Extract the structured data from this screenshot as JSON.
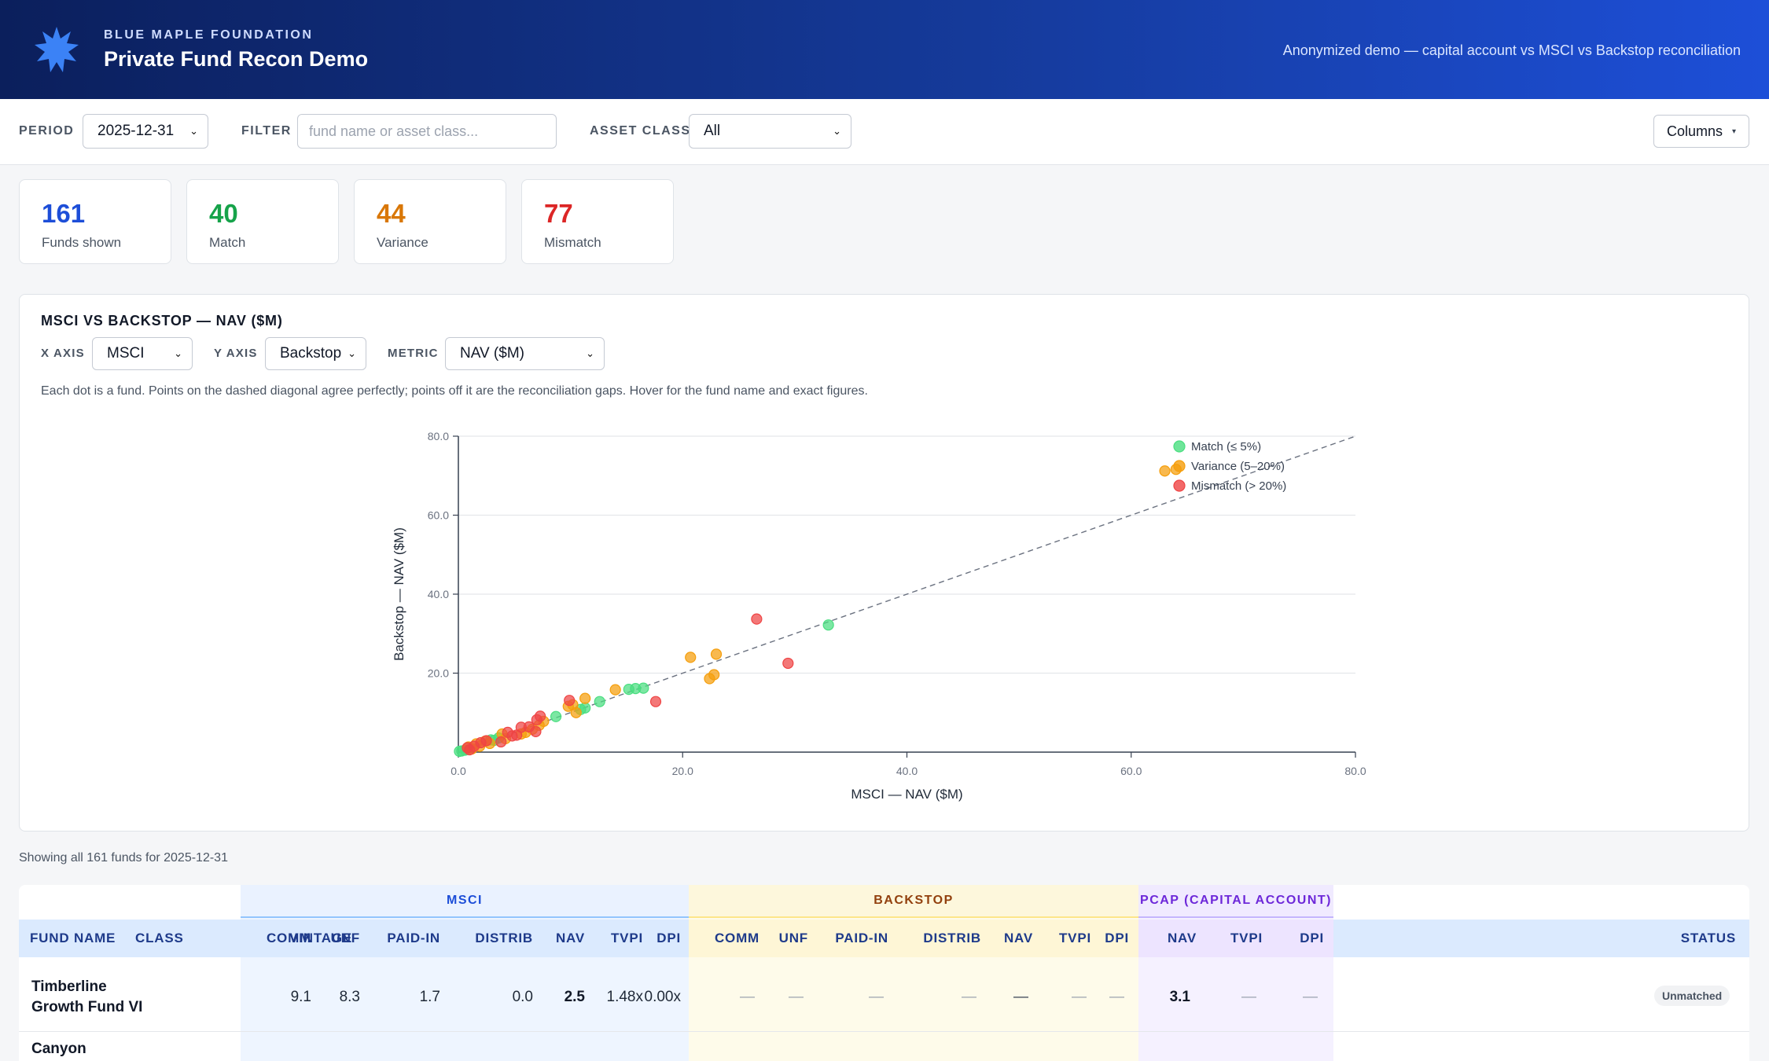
{
  "header": {
    "org": "BLUE MAPLE FOUNDATION",
    "title": "Private Fund Recon Demo",
    "subtitle": "Anonymized demo — capital account vs MSCI vs Backstop reconciliation"
  },
  "toolbar": {
    "period_label": "PERIOD",
    "period_value": "2025-12-31",
    "filter_label": "FILTER",
    "filter_placeholder": "fund name or asset class...",
    "asset_class_label": "ASSET CLASS",
    "asset_class_value": "All",
    "columns_label": "Columns"
  },
  "kpis": [
    {
      "value": "161",
      "label": "Funds shown",
      "color": "#1d4ed8"
    },
    {
      "value": "40",
      "label": "Match",
      "color": "#16a34a"
    },
    {
      "value": "44",
      "label": "Variance",
      "color": "#d97706"
    },
    {
      "value": "77",
      "label": "Mismatch",
      "color": "#dc2626"
    }
  ],
  "chart_panel": {
    "title": "MSCI VS BACKSTOP — NAV ($M)",
    "x_axis_label": "X AXIS",
    "x_axis_value": "MSCI",
    "y_axis_label": "Y AXIS",
    "y_axis_value": "Backstop",
    "metric_label": "METRIC",
    "metric_value": "NAV ($M)",
    "description": "Each dot is a fund. Points on the dashed diagonal agree perfectly; points off it are the reconciliation gaps. Hover for the fund name and exact figures."
  },
  "chart_data": {
    "type": "scatter",
    "xlabel": "MSCI — NAV ($M)",
    "ylabel": "Backstop — NAV ($M)",
    "xlim": [
      0,
      80
    ],
    "ylim": [
      0,
      80
    ],
    "xticks": [
      "0.0",
      "20.0",
      "40.0",
      "60.0",
      "80.0"
    ],
    "yticks": [
      "20.0",
      "40.0",
      "60.0",
      "80.0"
    ],
    "grid": "horizontal",
    "legend_position": "top-right",
    "diagonal": "dashed y = x",
    "colors": {
      "match": "#4ade80",
      "variance": "#f59e0b",
      "mismatch": "#ef4444"
    },
    "series": [
      {
        "name": "Match (≤ 5%)",
        "key": "match",
        "points": [
          [
            33.0,
            32.2
          ],
          [
            16.5,
            16.2
          ],
          [
            15.8,
            16.1
          ],
          [
            15.2,
            15.9
          ],
          [
            12.6,
            12.8
          ],
          [
            11.3,
            11.2
          ],
          [
            10.9,
            10.8
          ],
          [
            8.7,
            9.0
          ],
          [
            3.6,
            3.6
          ],
          [
            3.2,
            3.0
          ],
          [
            2.9,
            3.1
          ],
          [
            0.3,
            0.3
          ],
          [
            0.1,
            0.2
          ],
          [
            0.6,
            0.5
          ]
        ]
      },
      {
        "name": "Variance (5–20%)",
        "key": "variance",
        "points": [
          [
            63.0,
            71.2
          ],
          [
            64.0,
            71.6
          ],
          [
            20.7,
            24.0
          ],
          [
            23.0,
            24.8
          ],
          [
            22.8,
            19.6
          ],
          [
            22.4,
            18.6
          ],
          [
            14.0,
            15.8
          ],
          [
            11.3,
            13.6
          ],
          [
            10.2,
            12.0
          ],
          [
            10.5,
            10.0
          ],
          [
            9.8,
            11.6
          ],
          [
            7.6,
            7.8
          ],
          [
            7.2,
            6.8
          ],
          [
            6.6,
            5.8
          ],
          [
            6.0,
            5.0
          ],
          [
            5.6,
            4.6
          ],
          [
            4.2,
            3.4
          ],
          [
            3.9,
            4.6
          ],
          [
            2.8,
            2.2
          ],
          [
            2.4,
            2.8
          ],
          [
            1.9,
            1.5
          ],
          [
            1.6,
            2.1
          ],
          [
            1.2,
            0.8
          ],
          [
            0.9,
            1.3
          ]
        ]
      },
      {
        "name": "Mismatch (> 20%)",
        "key": "mismatch",
        "points": [
          [
            26.6,
            33.7
          ],
          [
            29.4,
            22.5
          ],
          [
            17.6,
            12.8
          ],
          [
            9.9,
            13.1
          ],
          [
            7.3,
            9.1
          ],
          [
            7.0,
            8.2
          ],
          [
            6.3,
            6.4
          ],
          [
            5.2,
            4.3
          ],
          [
            5.6,
            6.3
          ],
          [
            4.8,
            4.1
          ],
          [
            3.8,
            2.6
          ],
          [
            2.5,
            2.9
          ],
          [
            2.0,
            2.4
          ],
          [
            1.4,
            1.5
          ],
          [
            1.0,
            0.6
          ],
          [
            0.8,
            1.1
          ],
          [
            6.9,
            5.2
          ],
          [
            4.4,
            5.0
          ]
        ]
      }
    ]
  },
  "table": {
    "showing_text": "Showing all 161 funds for 2025-12-31",
    "groups": [
      "MSCI",
      "BACKSTOP",
      "PCAP (CAPITAL ACCOUNT)"
    ],
    "columns": [
      "FUND NAME",
      "CLASS",
      "VINTAGE",
      "COMM",
      "UNF",
      "PAID-IN",
      "DISTRIB",
      "NAV",
      "TVPI",
      "DPI",
      "COMM",
      "UNF",
      "PAID-IN",
      "DISTRIB",
      "NAV",
      "TVPI",
      "DPI",
      "NAV",
      "TVPI",
      "DPI",
      "STATUS"
    ],
    "rows": [
      {
        "fund": "Timberline Growth Fund VI",
        "msci": [
          "9.1",
          "8.3",
          "1.7",
          "0.0",
          "2.5",
          "1.48x",
          "0.00x"
        ],
        "backstop": [
          "—",
          "—",
          "—",
          "—",
          "—",
          "—",
          "—"
        ],
        "pcap": [
          "3.1",
          "—",
          "—"
        ],
        "status": "Unmatched"
      },
      {
        "fund": "Canyon"
      }
    ]
  }
}
